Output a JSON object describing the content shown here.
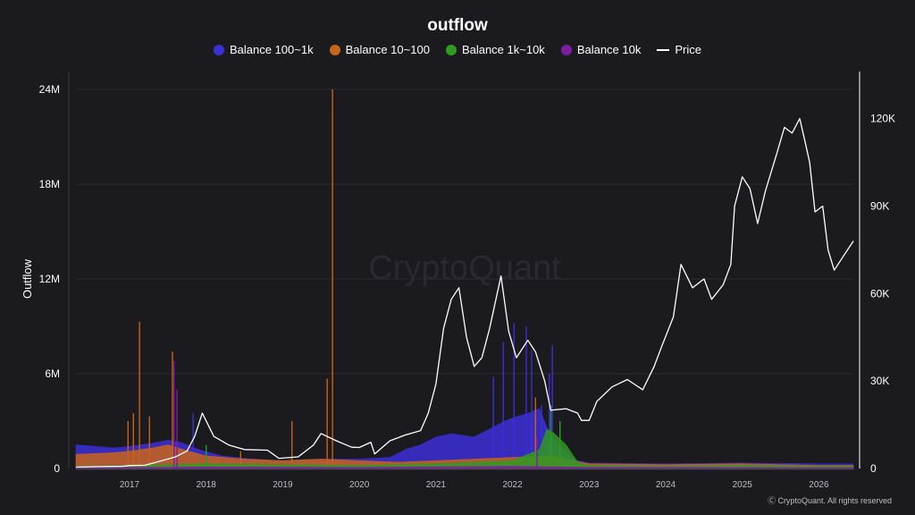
{
  "chart_data": {
    "type": "area",
    "title": "outflow",
    "ylabel": "Outflow",
    "y2label": "",
    "watermark": "CryptoQuant",
    "credit": "Ⓒ CryptoQuant. All rights reserved",
    "ylim": [
      0,
      24000000
    ],
    "y2lim": [
      0,
      130000
    ],
    "y_ticks": [
      {
        "v": 0,
        "label": "0"
      },
      {
        "v": 6000000,
        "label": "6M"
      },
      {
        "v": 12000000,
        "label": "12M"
      },
      {
        "v": 18000000,
        "label": "18M"
      },
      {
        "v": 24000000,
        "label": "24M"
      }
    ],
    "y2_ticks": [
      {
        "v": 0,
        "label": "0"
      },
      {
        "v": 30000,
        "label": "30K"
      },
      {
        "v": 60000,
        "label": "60K"
      },
      {
        "v": 90000,
        "label": "90K"
      },
      {
        "v": 120000,
        "label": "120K"
      }
    ],
    "x_range": [
      2016.3,
      2026.45
    ],
    "x_ticks": [
      "2017",
      "2018",
      "2019",
      "2020",
      "2021",
      "2022",
      "2023",
      "2024",
      "2025",
      "2026"
    ],
    "grid": true,
    "legend_position": "top-center",
    "series": [
      {
        "name": "Balance 100~1k",
        "color": "#3b2fd6",
        "kind": "area",
        "points": [
          [
            2016.3,
            1500000.0
          ],
          [
            2016.8,
            1300000.0
          ],
          [
            2017.0,
            1400000.0
          ],
          [
            2017.3,
            1600000.0
          ],
          [
            2017.5,
            1800000.0
          ],
          [
            2017.7,
            1600000.0
          ],
          [
            2017.9,
            1200000.0
          ],
          [
            2018.2,
            800000.0
          ],
          [
            2018.6,
            600000.0
          ],
          [
            2019.0,
            500000.0
          ],
          [
            2019.5,
            600000.0
          ],
          [
            2020.0,
            600000.0
          ],
          [
            2020.4,
            700000.0
          ],
          [
            2020.6,
            1200000.0
          ],
          [
            2020.8,
            1500000.0
          ],
          [
            2021.0,
            2000000.0
          ],
          [
            2021.2,
            2200000.0
          ],
          [
            2021.5,
            2000000.0
          ],
          [
            2021.7,
            2500000.0
          ],
          [
            2021.9,
            3000000.0
          ],
          [
            2022.0,
            3200000.0
          ],
          [
            2022.2,
            3500000.0
          ],
          [
            2022.35,
            3800000.0
          ],
          [
            2022.5,
            2000000.0
          ],
          [
            2022.7,
            1000000.0
          ],
          [
            2022.85,
            500000.0
          ],
          [
            2023.0,
            350000.0
          ],
          [
            2024.0,
            300000.0
          ],
          [
            2025.0,
            350000.0
          ],
          [
            2026.0,
            300000.0
          ],
          [
            2026.45,
            300000.0
          ]
        ],
        "spikes": [
          [
            2017.58,
            3000000.0
          ],
          [
            2017.83,
            3500000.0
          ],
          [
            2021.75,
            5800000.0
          ],
          [
            2021.88,
            8000000.0
          ],
          [
            2022.02,
            9200000.0
          ],
          [
            2022.18,
            9000000.0
          ],
          [
            2022.25,
            7500000.0
          ],
          [
            2022.38,
            4000000.0
          ],
          [
            2022.48,
            6000000.0
          ],
          [
            2022.52,
            7800000.0
          ]
        ]
      },
      {
        "name": "Balance 10~100",
        "color": "#c8631a",
        "kind": "area",
        "points": [
          [
            2016.3,
            900000.0
          ],
          [
            2016.8,
            1000000.0
          ],
          [
            2017.0,
            1100000.0
          ],
          [
            2017.3,
            1300000.0
          ],
          [
            2017.5,
            1500000.0
          ],
          [
            2017.7,
            1200000.0
          ],
          [
            2018.0,
            800000.0
          ],
          [
            2018.5,
            600000.0
          ],
          [
            2019.0,
            500000.0
          ],
          [
            2019.5,
            600000.0
          ],
          [
            2020.0,
            500000.0
          ],
          [
            2020.5,
            400000.0
          ],
          [
            2021.0,
            500000.0
          ],
          [
            2021.5,
            600000.0
          ],
          [
            2022.0,
            700000.0
          ],
          [
            2022.5,
            800000.0
          ],
          [
            2023.0,
            300000.0
          ],
          [
            2024.0,
            250000.0
          ],
          [
            2025.0,
            300000.0
          ],
          [
            2026.0,
            200000.0
          ],
          [
            2026.45,
            200000.0
          ]
        ],
        "spikes": [
          [
            2016.98,
            3000000.0
          ],
          [
            2017.05,
            3500000.0
          ],
          [
            2017.13,
            9300000.0
          ],
          [
            2017.26,
            3300000.0
          ],
          [
            2017.56,
            7400000.0
          ],
          [
            2018.45,
            1100000.0
          ],
          [
            2019.12,
            3000000.0
          ],
          [
            2019.58,
            5700000.0
          ],
          [
            2019.65,
            24000000.0
          ],
          [
            2022.3,
            4500000.0
          ]
        ]
      },
      {
        "name": "Balance 1k~10k",
        "color": "#2f9a22",
        "kind": "area",
        "points": [
          [
            2016.3,
            150000.0
          ],
          [
            2017.0,
            200000.0
          ],
          [
            2018.0,
            300000.0
          ],
          [
            2019.0,
            250000.0
          ],
          [
            2020.0,
            200000.0
          ],
          [
            2021.0,
            300000.0
          ],
          [
            2022.0,
            500000.0
          ],
          [
            2022.35,
            1200000.0
          ],
          [
            2022.45,
            2500000.0
          ],
          [
            2022.55,
            2200000.0
          ],
          [
            2022.7,
            1500000.0
          ],
          [
            2022.85,
            400000.0
          ],
          [
            2023.0,
            200000.0
          ],
          [
            2024.0,
            150000.0
          ],
          [
            2025.0,
            200000.0
          ],
          [
            2026.0,
            150000.0
          ],
          [
            2026.45,
            150000.0
          ]
        ],
        "spikes": [
          [
            2018.0,
            1500000.0
          ],
          [
            2022.5,
            4000000.0
          ],
          [
            2022.62,
            3000000.0
          ]
        ]
      },
      {
        "name": "Balance 10k",
        "color": "#7b1fa2",
        "kind": "area",
        "points": [
          [
            2016.3,
            50000.0
          ],
          [
            2018.0,
            100000.0
          ],
          [
            2020.0,
            80000.0
          ],
          [
            2022.0,
            150000.0
          ],
          [
            2023.0,
            80000.0
          ],
          [
            2026.45,
            50000.0
          ]
        ],
        "spikes": [
          [
            2017.58,
            6800000.0
          ],
          [
            2017.62,
            5000000.0
          ],
          [
            2022.32,
            2000000.0
          ]
        ]
      },
      {
        "name": "Price",
        "color": "#ffffff",
        "kind": "line",
        "axis": "right",
        "points": [
          [
            2016.3,
            450
          ],
          [
            2016.6,
            650
          ],
          [
            2016.9,
            750
          ],
          [
            2017.0,
            1000
          ],
          [
            2017.2,
            1100
          ],
          [
            2017.4,
            2500
          ],
          [
            2017.6,
            4000
          ],
          [
            2017.75,
            6000
          ],
          [
            2017.85,
            11000
          ],
          [
            2017.95,
            19000
          ],
          [
            2018.1,
            11000
          ],
          [
            2018.3,
            8000
          ],
          [
            2018.5,
            6500
          ],
          [
            2018.8,
            6300
          ],
          [
            2018.95,
            3500
          ],
          [
            2019.2,
            4000
          ],
          [
            2019.4,
            8000
          ],
          [
            2019.5,
            12000
          ],
          [
            2019.7,
            9500
          ],
          [
            2019.9,
            7300
          ],
          [
            2020.0,
            7200
          ],
          [
            2020.15,
            9000
          ],
          [
            2020.2,
            5000
          ],
          [
            2020.4,
            9500
          ],
          [
            2020.6,
            11500
          ],
          [
            2020.8,
            13000
          ],
          [
            2020.9,
            19000
          ],
          [
            2021.0,
            29000
          ],
          [
            2021.1,
            48000
          ],
          [
            2021.2,
            58000
          ],
          [
            2021.3,
            62000
          ],
          [
            2021.4,
            45000
          ],
          [
            2021.5,
            35000
          ],
          [
            2021.6,
            38000
          ],
          [
            2021.7,
            48000
          ],
          [
            2021.8,
            60000
          ],
          [
            2021.85,
            66000
          ],
          [
            2021.95,
            47000
          ],
          [
            2022.05,
            38000
          ],
          [
            2022.2,
            44000
          ],
          [
            2022.3,
            40000
          ],
          [
            2022.42,
            30000
          ],
          [
            2022.5,
            20000
          ],
          [
            2022.7,
            20500
          ],
          [
            2022.85,
            19000
          ],
          [
            2022.9,
            16500
          ],
          [
            2023.0,
            16500
          ],
          [
            2023.1,
            23000
          ],
          [
            2023.3,
            28000
          ],
          [
            2023.5,
            30500
          ],
          [
            2023.7,
            27000
          ],
          [
            2023.85,
            35000
          ],
          [
            2023.95,
            42000
          ],
          [
            2024.1,
            52000
          ],
          [
            2024.2,
            70000
          ],
          [
            2024.35,
            62000
          ],
          [
            2024.5,
            65000
          ],
          [
            2024.6,
            58000
          ],
          [
            2024.75,
            63000
          ],
          [
            2024.85,
            70000
          ],
          [
            2024.9,
            90000
          ],
          [
            2025.0,
            100000
          ],
          [
            2025.1,
            96000
          ],
          [
            2025.2,
            84000
          ],
          [
            2025.3,
            95000
          ],
          [
            2025.45,
            108000
          ],
          [
            2025.55,
            117000
          ],
          [
            2025.65,
            115000
          ],
          [
            2025.75,
            120000
          ],
          [
            2025.82,
            112000
          ],
          [
            2025.88,
            105000
          ],
          [
            2025.95,
            88000
          ],
          [
            2026.05,
            90000
          ],
          [
            2026.12,
            75000
          ],
          [
            2026.2,
            68000
          ],
          [
            2026.3,
            72000
          ],
          [
            2026.45,
            78000
          ]
        ]
      }
    ]
  }
}
